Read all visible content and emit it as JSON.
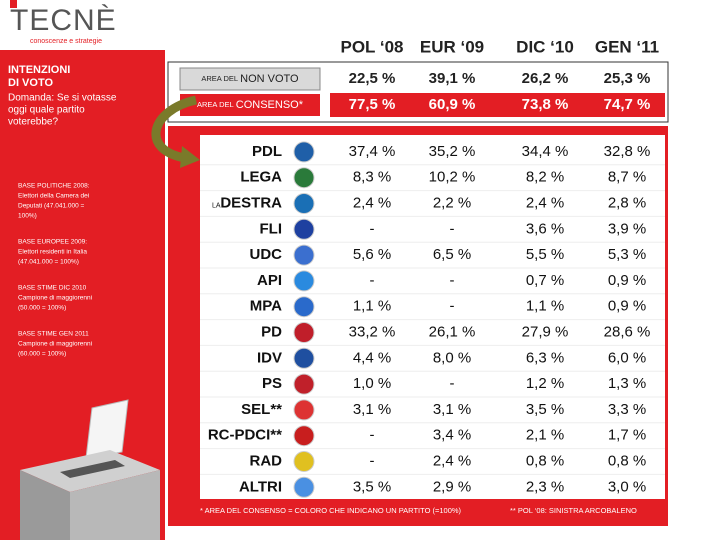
{
  "logo": {
    "name": "TECNÈ",
    "tagline": "conoscenze e strategie"
  },
  "sidebar": {
    "title": [
      "INTENZIONI",
      "DI VOTO"
    ],
    "question": [
      "Domanda: Se si votasse",
      "oggi quale partito",
      "voterebbe?"
    ],
    "notes": [
      {
        "heading": "BASE POLITICHE 2008:",
        "lines": [
          "Elettori della Camera dei",
          "Deputati (47.041.000 =",
          "100%)"
        ]
      },
      {
        "heading": "BASE EUROPEE 2009:",
        "lines": [
          "Elettori residenti in Italia",
          "(47.041.000 = 100%)"
        ]
      },
      {
        "heading": "BASE STIME DIC 2010",
        "lines": [
          "Campione di maggiorenni",
          "(50.000 = 100%)"
        ]
      },
      {
        "heading": "BASE STIME GEN 2011",
        "lines": [
          "Campione di maggiorenni",
          "(60.000 = 100%)"
        ]
      }
    ]
  },
  "columns": [
    "POL ‘08",
    "EUR ‘09",
    "DIC ‘10",
    "GEN ‘11"
  ],
  "summary": [
    {
      "prefix": "AREA DEL",
      "label": "NON VOTO",
      "values": [
        "22,5 %",
        "39,1 %",
        "26,2 %",
        "25,3 %"
      ]
    },
    {
      "prefix": "AREA DEL",
      "label": "CONSENSO*",
      "values": [
        "77,5 %",
        "60,9 %",
        "73,8 %",
        "74,7 %"
      ]
    }
  ],
  "parties": [
    {
      "name": "PDL",
      "values": [
        "37,4 %",
        "35,2 %",
        "34,4 %",
        "32,8 %"
      ]
    },
    {
      "name": "LEGA",
      "values": [
        "8,3 %",
        "10,2 %",
        "8,2 %",
        "8,7 %"
      ]
    },
    {
      "prefix": "LA",
      "name": "DESTRA",
      "values": [
        "2,4 %",
        "2,2 %",
        "2,4 %",
        "2,8 %"
      ]
    },
    {
      "name": "FLI",
      "values": [
        "-",
        "-",
        "3,6 %",
        "3,9 %"
      ]
    },
    {
      "name": "UDC",
      "values": [
        "5,6 %",
        "6,5 %",
        "5,5 %",
        "5,3 %"
      ]
    },
    {
      "name": "API",
      "values": [
        "-",
        "-",
        "0,7 %",
        "0,9 %"
      ]
    },
    {
      "name": "MPA",
      "values": [
        "1,1 %",
        "-",
        "1,1 %",
        "0,9 %"
      ]
    },
    {
      "name": "PD",
      "values": [
        "33,2 %",
        "26,1 %",
        "27,9 %",
        "28,6 %"
      ]
    },
    {
      "name": "IDV",
      "values": [
        "4,4 %",
        "8,0 %",
        "6,3 %",
        "6,0 %"
      ]
    },
    {
      "name": "PS",
      "values": [
        "1,0 %",
        "-",
        "1,2 %",
        "1,3 %"
      ]
    },
    {
      "name": "SEL**",
      "values": [
        "3,1 %",
        "3,1 %",
        "3,5 %",
        "3,3 %"
      ]
    },
    {
      "name": "RC-PDCI**",
      "values": [
        "-",
        "3,4 %",
        "2,1 %",
        "1,7 %"
      ]
    },
    {
      "name": "RAD",
      "values": [
        "-",
        "2,4 %",
        "0,8 %",
        "0,8 %"
      ]
    },
    {
      "name": "ALTRI",
      "values": [
        "3,5 %",
        "2,9 %",
        "2,3 %",
        "3,0 %"
      ]
    }
  ],
  "footnotes": [
    "* AREA DEL CONSENSO = COLORO CHE INDICANO UN PARTITO  (=100%)",
    "** POL ‘08: SINISTRA ARCOBALENO"
  ]
}
